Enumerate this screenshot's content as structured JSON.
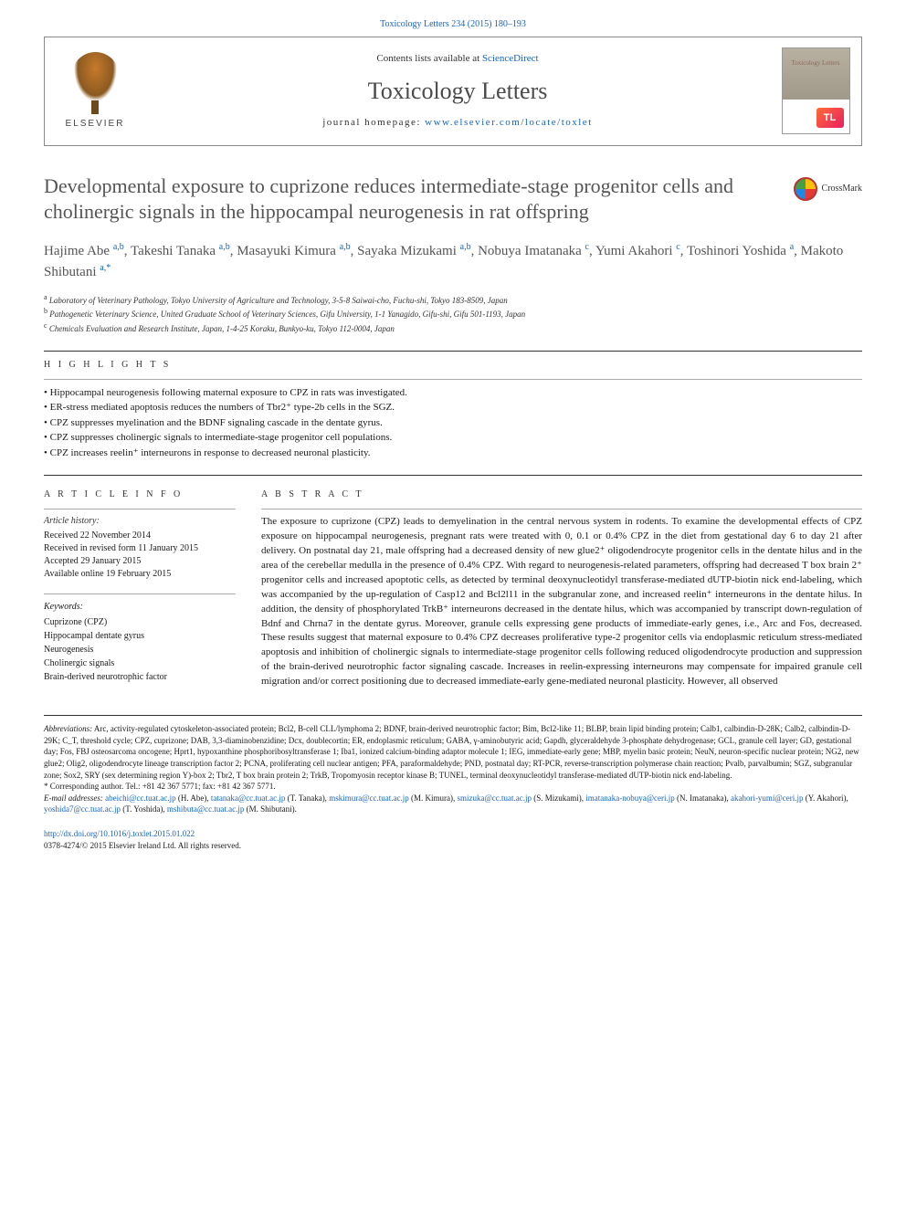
{
  "header": {
    "citation_prefix": "Toxicology Letters 234 (2015) 180–193",
    "contents_text": "Contents lists available at ",
    "contents_link": "ScienceDirect",
    "journal_name": "Toxicology Letters",
    "homepage_label": "journal homepage: ",
    "homepage_url": "www.elsevier.com/locate/toxlet",
    "publisher": "ELSEVIER",
    "cover_title": "Toxicology Letters",
    "cover_badge": "TL",
    "crossmark": "CrossMark"
  },
  "article": {
    "title": "Developmental exposure to cuprizone reduces intermediate-stage progenitor cells and cholinergic signals in the hippocampal neurogenesis in rat offspring",
    "authors_html": "Hajime Abe <sup>a,b</sup>, Takeshi Tanaka <sup>a,b</sup>, Masayuki Kimura <sup>a,b</sup>, Sayaka Mizukami <sup>a,b</sup>, Nobuya Imatanaka <sup>c</sup>, Yumi Akahori <sup>c</sup>, Toshinori Yoshida <sup>a</sup>, Makoto Shibutani <sup>a,*</sup>",
    "affiliations": [
      {
        "label": "a",
        "text": "Laboratory of Veterinary Pathology, Tokyo University of Agriculture and Technology, 3-5-8 Saiwai-cho, Fuchu-shi, Tokyo 183-8509, Japan"
      },
      {
        "label": "b",
        "text": "Pathogenetic Veterinary Science, United Graduate School of Veterinary Sciences, Gifu University, 1-1 Yanagido, Gifu-shi, Gifu 501-1193, Japan"
      },
      {
        "label": "c",
        "text": "Chemicals Evaluation and Research Institute, Japan, 1-4-25 Koraku, Bunkyo-ku, Tokyo 112-0004, Japan"
      }
    ]
  },
  "highlights": {
    "label": "H I G H L I G H T S",
    "items": [
      "Hippocampal neurogenesis following maternal exposure to CPZ in rats was investigated.",
      "ER-stress mediated apoptosis reduces the numbers of Tbr2⁺ type-2b cells in the SGZ.",
      "CPZ suppresses myelination and the BDNF signaling cascade in the dentate gyrus.",
      "CPZ suppresses cholinergic signals to intermediate-stage progenitor cell populations.",
      "CPZ increases reelin⁺ interneurons in response to decreased neuronal plasticity."
    ]
  },
  "article_info": {
    "label": "A R T I C L E  I N F O",
    "history_heading": "Article history:",
    "history": [
      "Received 22 November 2014",
      "Received in revised form 11 January 2015",
      "Accepted 29 January 2015",
      "Available online 19 February 2015"
    ],
    "keywords_heading": "Keywords:",
    "keywords": [
      "Cuprizone (CPZ)",
      "Hippocampal dentate gyrus",
      "Neurogenesis",
      "Cholinergic signals",
      "Brain-derived neurotrophic factor"
    ]
  },
  "abstract": {
    "label": "A B S T R A C T",
    "text": "The exposure to cuprizone (CPZ) leads to demyelination in the central nervous system in rodents. To examine the developmental effects of CPZ exposure on hippocampal neurogenesis, pregnant rats were treated with 0, 0.1 or 0.4% CPZ in the diet from gestational day 6 to day 21 after delivery. On postnatal day 21, male offspring had a decreased density of new glue2⁺ oligodendrocyte progenitor cells in the dentate hilus and in the area of the cerebellar medulla in the presence of 0.4% CPZ. With regard to neurogenesis-related parameters, offspring had decreased T box brain 2⁺ progenitor cells and increased apoptotic cells, as detected by terminal deoxynucleotidyl transferase-mediated dUTP-biotin nick end-labeling, which was accompanied by the up-regulation of Casp12 and Bcl2l11 in the subgranular zone, and increased reelin⁺ interneurons in the dentate hilus. In addition, the density of phosphorylated TrkB⁺ interneurons decreased in the dentate hilus, which was accompanied by transcript down-regulation of Bdnf and Chrna7 in the dentate gyrus. Moreover, granule cells expressing gene products of immediate-early genes, i.e., Arc and Fos, decreased. These results suggest that maternal exposure to 0.4% CPZ decreases proliferative type-2 progenitor cells via endoplasmic reticulum stress-mediated apoptosis and inhibition of cholinergic signals to intermediate-stage progenitor cells following reduced oligodendrocyte production and suppression of the brain-derived neurotrophic factor signaling cascade. Increases in reelin-expressing interneurons may compensate for impaired granule cell migration and/or correct positioning due to decreased immediate-early gene-mediated neuronal plasticity. However, all observed"
  },
  "footer": {
    "abbrev_label": "Abbreviations:",
    "abbrev_text": " Arc, activity-regulated cytoskeleton-associated protein; Bcl2, B-cell CLL/lymphoma 2; BDNF, brain-derived neurotrophic factor; Bim, Bcl2-like 11; BLBP, brain lipid binding protein; Calb1, calbindin-D-28K; Calb2, calbindin-D-29K; C_T, threshold cycle; CPZ, cuprizone; DAB, 3,3-diaminobenzidine; Dcx, doublecortin; ER, endoplasmic reticulum; GABA, γ-aminobutyric acid; Gapdh, glyceraldehyde 3-phosphate dehydrogenase; GCL, granule cell layer; GD, gestational day; Fos, FBJ osteosarcoma oncogene; Hprt1, hypoxanthine phosphoribosyltransferase 1; Iba1, ionized calcium-binding adaptor molecule 1; IEG, immediate-early gene; MBP, myelin basic protein; NeuN, neuron-specific nuclear protein; NG2, new glue2; Olig2, oligodendrocyte lineage transcription factor 2; PCNA, proliferating cell nuclear antigen; PFA, paraformaldehyde; PND, postnatal day; RT-PCR, reverse-transcription polymerase chain reaction; Pvalb, parvalbumin; SGZ, subgranular zone; Sox2, SRY (sex determining region Y)-box 2; Tbr2, T box brain protein 2; TrkB, Tropomyosin receptor kinase B; TUNEL, terminal deoxynucleotidyl transferase-mediated dUTP-biotin nick end-labeling.",
    "corresponding": "* Corresponding author. Tel.: +81 42 367 5771; fax: +81 42 367 5771.",
    "emails_label": "E-mail addresses: ",
    "emails": [
      {
        "addr": "abeichi@cc.tuat.ac.jp",
        "who": " (H. Abe), "
      },
      {
        "addr": "tatanaka@cc.tuat.ac.jp",
        "who": " (T. Tanaka), "
      },
      {
        "addr": "mskimura@cc.tuat.ac.jp",
        "who": " (M. Kimura), "
      },
      {
        "addr": "smizuka@cc.tuat.ac.jp",
        "who": " (S. Mizukami), "
      },
      {
        "addr": "imatanaka-nobuya@ceri.jp",
        "who": " (N. Imatanaka), "
      },
      {
        "addr": "akahori-yumi@ceri.jp",
        "who": " (Y. Akahori), "
      },
      {
        "addr": "yoshida7@cc.tuat.ac.jp",
        "who": " (T. Yoshida), "
      },
      {
        "addr": "mshibuta@cc.tuat.ac.jp",
        "who": " (M. Shibutani)."
      }
    ],
    "doi": "http://dx.doi.org/10.1016/j.toxlet.2015.01.022",
    "issn_copyright": "0378-4274/© 2015 Elsevier Ireland Ltd. All rights reserved."
  },
  "colors": {
    "link": "#1565c0",
    "title_gray": "#555555",
    "rule": "#333333"
  }
}
